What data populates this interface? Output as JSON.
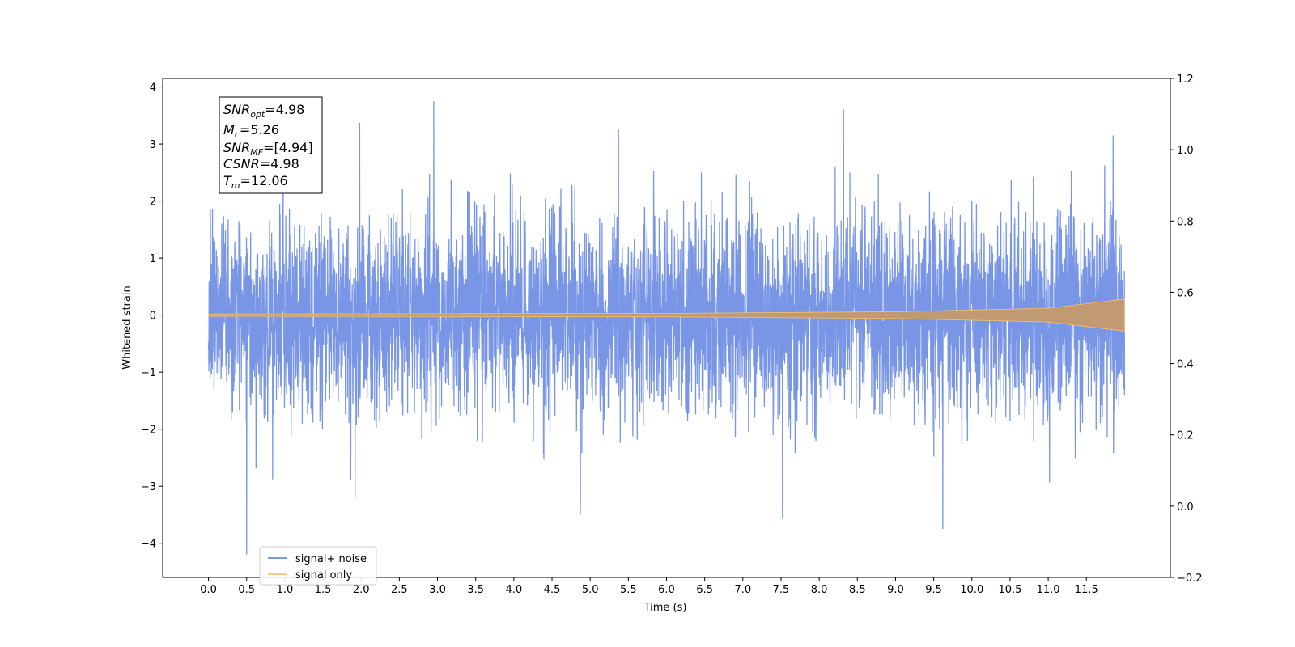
{
  "chart_data": {
    "type": "line",
    "xlabel": "Time (s)",
    "ylabel": "Whitened strain",
    "xlim": [
      -0.6,
      12.6
    ],
    "ylim": [
      -4.6,
      4.15
    ],
    "ylim_right": [
      -0.2,
      1.2
    ],
    "x_ticks": [
      0.0,
      0.5,
      1.0,
      1.5,
      2.0,
      2.5,
      3.0,
      3.5,
      4.0,
      4.5,
      5.0,
      5.5,
      6.0,
      6.5,
      7.0,
      7.5,
      8.0,
      8.5,
      9.0,
      9.5,
      10.0,
      10.5,
      11.0,
      11.5
    ],
    "x_tick_labels": [
      "0.0",
      "0.5",
      "1.0",
      "1.5",
      "2.0",
      "2.5",
      "3.0",
      "3.5",
      "4.0",
      "4.5",
      "5.0",
      "5.5",
      "6.0",
      "6.5",
      "7.0",
      "7.5",
      "8.0",
      "8.5",
      "9.0",
      "9.5",
      "10.0",
      "10.5",
      "11.0",
      "11.5"
    ],
    "y_ticks": [
      -4,
      -3,
      -2,
      -1,
      0,
      1,
      2,
      3,
      4
    ],
    "y_tick_labels": [
      "−4",
      "−3",
      "−2",
      "−1",
      "0",
      "1",
      "2",
      "3",
      "4"
    ],
    "y_ticks_right": [
      -0.2,
      0.0,
      0.2,
      0.4,
      0.6,
      0.8,
      1.0,
      1.2
    ],
    "y_tick_labels_right": [
      "−0.2",
      "0.0",
      "0.2",
      "0.4",
      "0.6",
      "0.8",
      "1.0",
      "1.2"
    ],
    "grid": false,
    "legend_position": "lower-left",
    "series": [
      {
        "name": "signal+ noise",
        "color": "#6a8be3",
        "t_start": 0.0,
        "t_end": 12.0,
        "noise_sigma": 0.85,
        "peaks": [
          {
            "t": 2.95,
            "v": 3.75
          },
          {
            "t": 8.32,
            "v": 3.6
          },
          {
            "t": 1.98,
            "v": 3.37
          },
          {
            "t": 5.37,
            "v": 3.25
          },
          {
            "t": 11.85,
            "v": 3.15
          },
          {
            "t": 0.5,
            "v": -4.2
          },
          {
            "t": 9.62,
            "v": -3.75
          },
          {
            "t": 7.52,
            "v": -3.55
          },
          {
            "t": 4.87,
            "v": -3.48
          },
          {
            "t": 1.92,
            "v": -3.2
          }
        ]
      },
      {
        "name": "signal only",
        "color": "#f5c26b",
        "t_start": 0.0,
        "t_end": 12.0,
        "envelope": [
          {
            "t": 0.0,
            "a": 0.02
          },
          {
            "t": 6.0,
            "a": 0.03
          },
          {
            "t": 9.0,
            "a": 0.06
          },
          {
            "t": 11.0,
            "a": 0.12
          },
          {
            "t": 12.0,
            "a": 0.28
          }
        ]
      }
    ],
    "annotation_box": {
      "lines": [
        {
          "base": "SNR",
          "sub": "opt",
          "value": "=4.98"
        },
        {
          "base": "M",
          "sub": "c",
          "value": "=5.26"
        },
        {
          "base": "SNR",
          "sub": "MF",
          "value": "=[4.94]"
        },
        {
          "base": "CSNR",
          "sub": "",
          "value": "=4.98"
        },
        {
          "base": "T",
          "sub": "m",
          "value": "=12.06"
        }
      ]
    }
  }
}
